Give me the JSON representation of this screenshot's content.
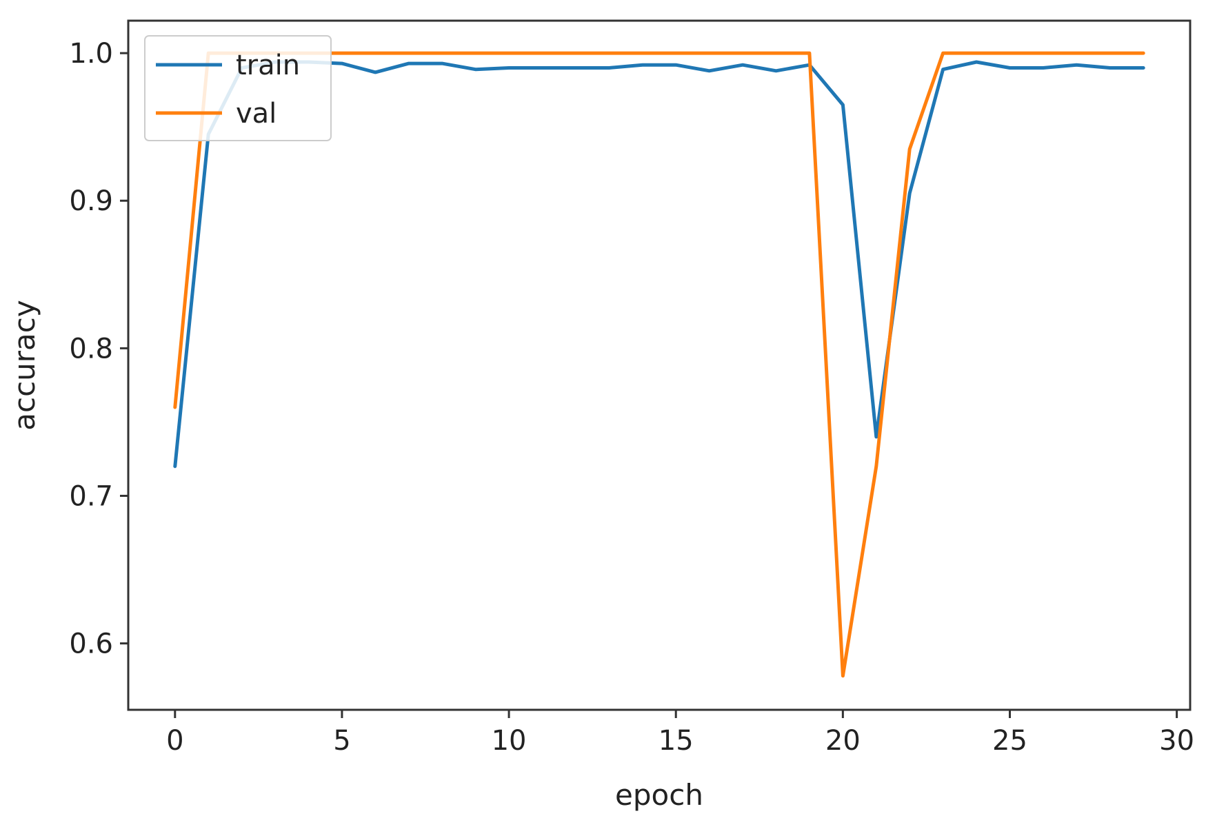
{
  "chart_data": {
    "type": "line",
    "title": "",
    "xlabel": "epoch",
    "ylabel": "accuracy",
    "xlim": [
      -1.4,
      30.4
    ],
    "ylim": [
      0.555,
      1.022
    ],
    "x_ticks": [
      0,
      5,
      10,
      15,
      20,
      25,
      30
    ],
    "y_ticks": [
      0.6,
      0.7,
      0.8,
      0.9,
      1.0
    ],
    "x_tick_labels": [
      "0",
      "5",
      "10",
      "15",
      "20",
      "25",
      "30"
    ],
    "y_tick_labels": [
      "0.6",
      "0.7",
      "0.8",
      "0.9",
      "1.0"
    ],
    "grid": false,
    "legend_position": "top-left",
    "x": [
      0,
      1,
      2,
      3,
      4,
      5,
      6,
      7,
      8,
      9,
      10,
      11,
      12,
      13,
      14,
      15,
      16,
      17,
      18,
      19,
      20,
      21,
      22,
      23,
      24,
      25,
      26,
      27,
      28,
      29
    ],
    "series": [
      {
        "name": "train",
        "color": "#1f77b4",
        "values": [
          0.72,
          0.945,
          0.99,
          0.994,
          0.994,
          0.993,
          0.987,
          0.993,
          0.993,
          0.989,
          0.99,
          0.99,
          0.99,
          0.99,
          0.992,
          0.992,
          0.988,
          0.992,
          0.988,
          0.992,
          0.965,
          0.74,
          0.905,
          0.989,
          0.994,
          0.99,
          0.99,
          0.992,
          0.99,
          0.99
        ]
      },
      {
        "name": "val",
        "color": "#ff7f0e",
        "values": [
          0.76,
          1.0,
          1.0,
          1.0,
          1.0,
          1.0,
          1.0,
          1.0,
          1.0,
          1.0,
          1.0,
          1.0,
          1.0,
          1.0,
          1.0,
          1.0,
          1.0,
          1.0,
          1.0,
          1.0,
          0.578,
          0.72,
          0.935,
          1.0,
          1.0,
          1.0,
          1.0,
          1.0,
          1.0,
          1.0
        ]
      }
    ]
  }
}
